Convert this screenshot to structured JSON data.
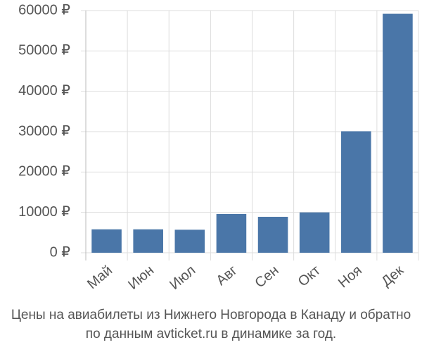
{
  "chart_data": {
    "type": "bar",
    "categories": [
      "Май",
      "Июн",
      "Июл",
      "Авг",
      "Сен",
      "Окт",
      "Ноя",
      "Дек"
    ],
    "values": [
      5800,
      5800,
      5700,
      9600,
      8900,
      10000,
      30100,
      59200
    ],
    "color": "#4a76a8",
    "ylim": [
      0,
      60000
    ],
    "yticks": [
      {
        "value": 0,
        "label": "0 ₽"
      },
      {
        "value": 10000,
        "label": "10000 ₽"
      },
      {
        "value": 20000,
        "label": "20000 ₽"
      },
      {
        "value": 30000,
        "label": "30000 ₽"
      },
      {
        "value": 40000,
        "label": "40000 ₽"
      },
      {
        "value": 50000,
        "label": "50000 ₽"
      },
      {
        "value": 60000,
        "label": "60000 ₽"
      }
    ],
    "grid": true,
    "caption": [
      "Цены на авиабилеты из Нижнего Новгорода в Канаду и обратно",
      "по данным avticket.ru в динамике за год."
    ]
  }
}
